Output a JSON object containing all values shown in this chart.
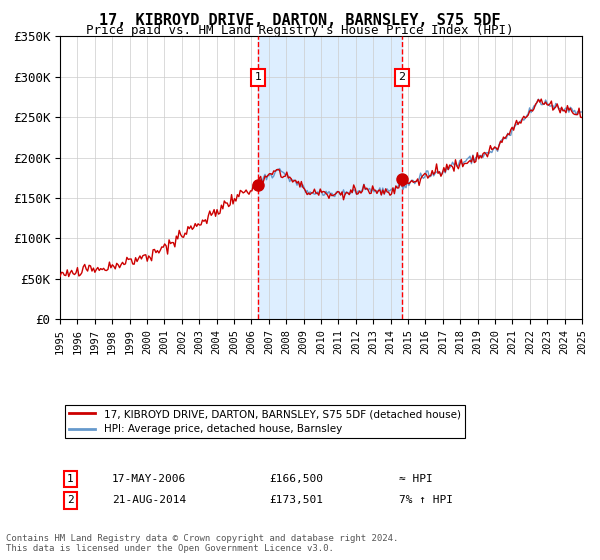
{
  "title": "17, KIBROYD DRIVE, DARTON, BARNSLEY, S75 5DF",
  "subtitle": "Price paid vs. HM Land Registry's House Price Index (HPI)",
  "hpi_color": "#6699cc",
  "price_color": "#cc0000",
  "marker_color": "#cc0000",
  "shade_color": "#ddeeff",
  "grid_color": "#cccccc",
  "bg_color": "#ffffff",
  "transaction1_date": "17-MAY-2006",
  "transaction1_price": 166500,
  "transaction1_label": "≈ HPI",
  "transaction1_year": 2006.38,
  "transaction2_date": "21-AUG-2014",
  "transaction2_price": 173501,
  "transaction2_label": "7% ↑ HPI",
  "transaction2_year": 2014.64,
  "xmin": 1995,
  "xmax": 2025,
  "ymin": 0,
  "ymax": 350000,
  "yticks": [
    0,
    50000,
    100000,
    150000,
    200000,
    250000,
    300000,
    350000
  ],
  "ytick_labels": [
    "£0",
    "£50K",
    "£100K",
    "£150K",
    "£200K",
    "£250K",
    "£300K",
    "£350K"
  ],
  "xticks": [
    1995,
    1996,
    1997,
    1998,
    1999,
    2000,
    2001,
    2002,
    2003,
    2004,
    2005,
    2006,
    2007,
    2008,
    2009,
    2010,
    2011,
    2012,
    2013,
    2014,
    2015,
    2016,
    2017,
    2018,
    2019,
    2020,
    2021,
    2022,
    2023,
    2024,
    2025
  ],
  "legend_price_label": "17, KIBROYD DRIVE, DARTON, BARNSLEY, S75 5DF (detached house)",
  "legend_hpi_label": "HPI: Average price, detached house, Barnsley",
  "footer": "Contains HM Land Registry data © Crown copyright and database right 2024.\nThis data is licensed under the Open Government Licence v3.0."
}
